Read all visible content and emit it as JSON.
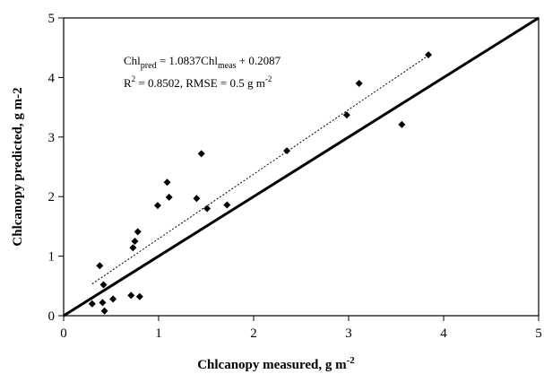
{
  "chart_data": {
    "type": "scatter",
    "xlabel": "Chlcanopy measured, g m",
    "xlabel_sup": "-2",
    "ylabel": "Chlcanopy predicted, g m-2",
    "xlim": [
      0,
      5
    ],
    "ylim": [
      0,
      5
    ],
    "x_ticks": [
      "0",
      "1",
      "2",
      "3",
      "4",
      "5"
    ],
    "y_ticks": [
      "0",
      "1",
      "2",
      "3",
      "4",
      "5"
    ],
    "grid": false,
    "points": [
      {
        "x": 0.3,
        "y": 0.2
      },
      {
        "x": 0.38,
        "y": 0.84
      },
      {
        "x": 0.41,
        "y": 0.22
      },
      {
        "x": 0.42,
        "y": 0.52
      },
      {
        "x": 0.43,
        "y": 0.08
      },
      {
        "x": 0.52,
        "y": 0.28
      },
      {
        "x": 0.71,
        "y": 0.34
      },
      {
        "x": 0.73,
        "y": 1.14
      },
      {
        "x": 0.75,
        "y": 1.25
      },
      {
        "x": 0.78,
        "y": 1.41
      },
      {
        "x": 0.8,
        "y": 0.32
      },
      {
        "x": 0.99,
        "y": 1.85
      },
      {
        "x": 1.09,
        "y": 2.24
      },
      {
        "x": 1.11,
        "y": 1.99
      },
      {
        "x": 1.4,
        "y": 1.97
      },
      {
        "x": 1.45,
        "y": 2.72
      },
      {
        "x": 1.51,
        "y": 1.8
      },
      {
        "x": 1.72,
        "y": 1.86
      },
      {
        "x": 2.35,
        "y": 2.77
      },
      {
        "x": 2.98,
        "y": 3.37
      },
      {
        "x": 3.11,
        "y": 3.9
      },
      {
        "x": 3.56,
        "y": 3.21
      },
      {
        "x": 3.84,
        "y": 4.38
      }
    ],
    "fit_line": {
      "slope": 1.0837,
      "intercept": 0.2087,
      "x_range": [
        0.3,
        3.84
      ]
    },
    "identity_line": {
      "from": [
        0,
        0
      ],
      "to": [
        5,
        5
      ]
    },
    "annotation": {
      "eq_chl1": "Chl",
      "eq_sub1": "pred",
      "eq_mid": " = 1.0837Chl",
      "eq_sub2": "meas",
      "eq_end": " + 0.2087",
      "r2_r": "R",
      "r2_sup": "2",
      "r2_mid": " = 0.8502, RMSE = 0.5 g m",
      "r2_sup2": "-2"
    }
  }
}
